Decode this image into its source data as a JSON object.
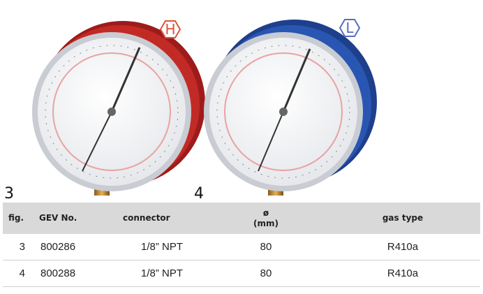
{
  "figures": [
    {
      "label": "3",
      "badge": "H"
    },
    {
      "label": "4",
      "badge": "L"
    }
  ],
  "table": {
    "headers": [
      "fig.",
      "GEV No.",
      "connector",
      "ø\n(mm)",
      "gas type"
    ],
    "rows": [
      [
        "3",
        "800286",
        "1/8” NPT",
        "80",
        "R410a"
      ],
      [
        "4",
        "800288",
        "1/8” NPT",
        "80",
        "R410a"
      ]
    ]
  }
}
